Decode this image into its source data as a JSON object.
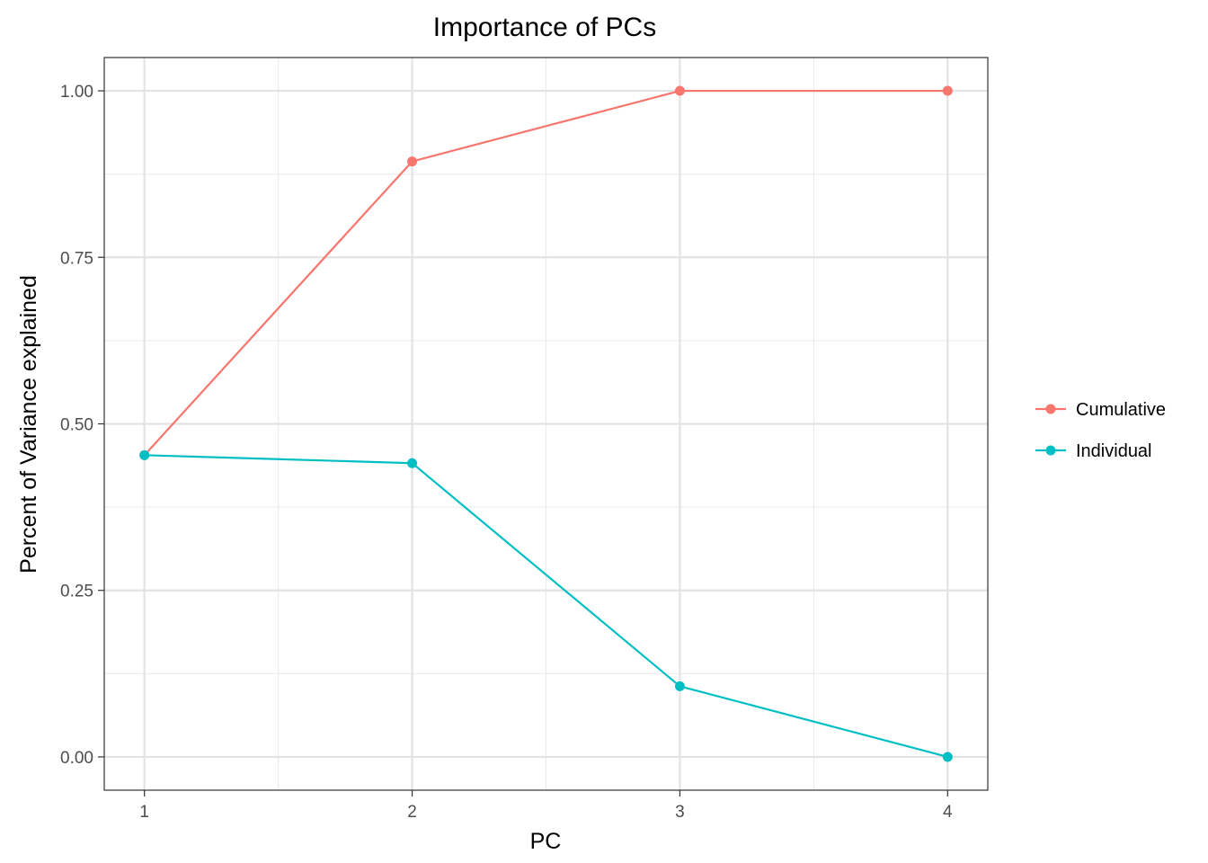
{
  "chart_data": {
    "type": "line",
    "title": "Importance of PCs",
    "xlabel": "PC",
    "ylabel": "Percent of Variance explained",
    "x": [
      1,
      2,
      3,
      4
    ],
    "xticks": [
      "1",
      "2",
      "3",
      "4"
    ],
    "yticks": [
      "0.00",
      "0.25",
      "0.50",
      "0.75",
      "1.00"
    ],
    "xlim": [
      0.85,
      4.15
    ],
    "ylim": [
      -0.05,
      1.05
    ],
    "grid": true,
    "legend_position": "right",
    "series": [
      {
        "name": "Cumulative",
        "color": "#F8766D",
        "values": [
          0.453,
          0.894,
          1.0,
          1.0
        ]
      },
      {
        "name": "Individual",
        "color": "#00BFC4",
        "values": [
          0.453,
          0.441,
          0.106,
          0.0
        ]
      }
    ]
  }
}
